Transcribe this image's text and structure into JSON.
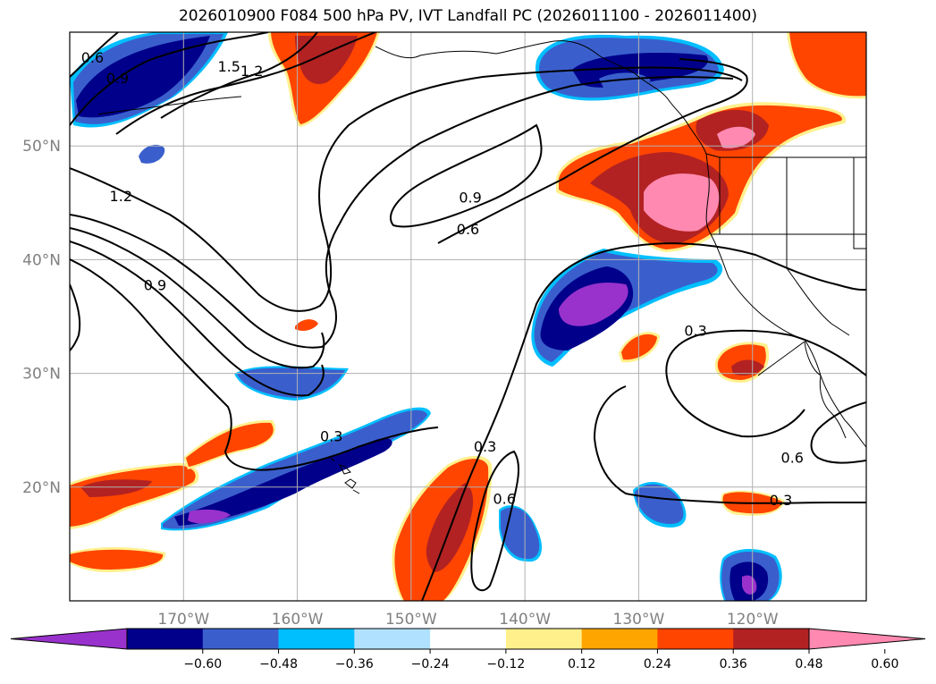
{
  "title": "2026010900 F084 500 hPa PV, IVT Landfall PC (2026011100 - 2026011400)",
  "map": {
    "projection": "equirectangular",
    "lon_range": [
      -180,
      -110
    ],
    "lat_range": [
      10,
      60
    ],
    "lon_ticks": [
      {
        "value": -170,
        "label": "170°W"
      },
      {
        "value": -160,
        "label": "160°W"
      },
      {
        "value": -150,
        "label": "150°W"
      },
      {
        "value": -140,
        "label": "140°W"
      },
      {
        "value": -130,
        "label": "130°W"
      },
      {
        "value": -120,
        "label": "120°W"
      }
    ],
    "lat_ticks": [
      {
        "value": 20,
        "label": "20°N"
      },
      {
        "value": 30,
        "label": "30°N"
      },
      {
        "value": 40,
        "label": "40°N"
      },
      {
        "value": 50,
        "label": "50°N"
      }
    ],
    "gridlines": true
  },
  "contour_labels": [
    {
      "text": "0.6",
      "lon": -178.0,
      "lat": 57.8
    },
    {
      "text": "0.9",
      "lon": -175.8,
      "lat": 56.0
    },
    {
      "text": "1.5",
      "lon": -166.0,
      "lat": 57.0
    },
    {
      "text": "1.2",
      "lon": -164.0,
      "lat": 56.6
    },
    {
      "text": "1.2",
      "lon": -175.5,
      "lat": 45.6
    },
    {
      "text": "0.9",
      "lon": -172.5,
      "lat": 37.8
    },
    {
      "text": "0.9",
      "lon": -144.8,
      "lat": 45.5
    },
    {
      "text": "0.6",
      "lon": -145.0,
      "lat": 42.7
    },
    {
      "text": "0.3",
      "lon": -125.0,
      "lat": 33.8
    },
    {
      "text": "0.3",
      "lon": -157.0,
      "lat": 24.5
    },
    {
      "text": "0.3",
      "lon": -143.5,
      "lat": 23.6
    },
    {
      "text": "0.6",
      "lon": -141.8,
      "lat": 19.0
    },
    {
      "text": "0.6",
      "lon": -116.5,
      "lat": 22.6
    },
    {
      "text": "0.3",
      "lon": -117.5,
      "lat": 18.9
    }
  ],
  "pv_contour_levels": [
    0.3,
    0.6,
    0.9,
    1.2,
    1.5
  ],
  "colorbar": {
    "colors": [
      "#9932cc",
      "#00008b",
      "#3a5fcd",
      "#00bfff",
      "#b0e2ff",
      "#ffffff",
      "#fff08c",
      "#ffa500",
      "#ff4500",
      "#b22222",
      "#ff89b0"
    ],
    "tick_labels": [
      "−0.60",
      "−0.48",
      "−0.36",
      "−0.24",
      "−0.12",
      "0.12",
      "0.24",
      "0.36",
      "0.48",
      "0.60"
    ],
    "extend": "both"
  }
}
